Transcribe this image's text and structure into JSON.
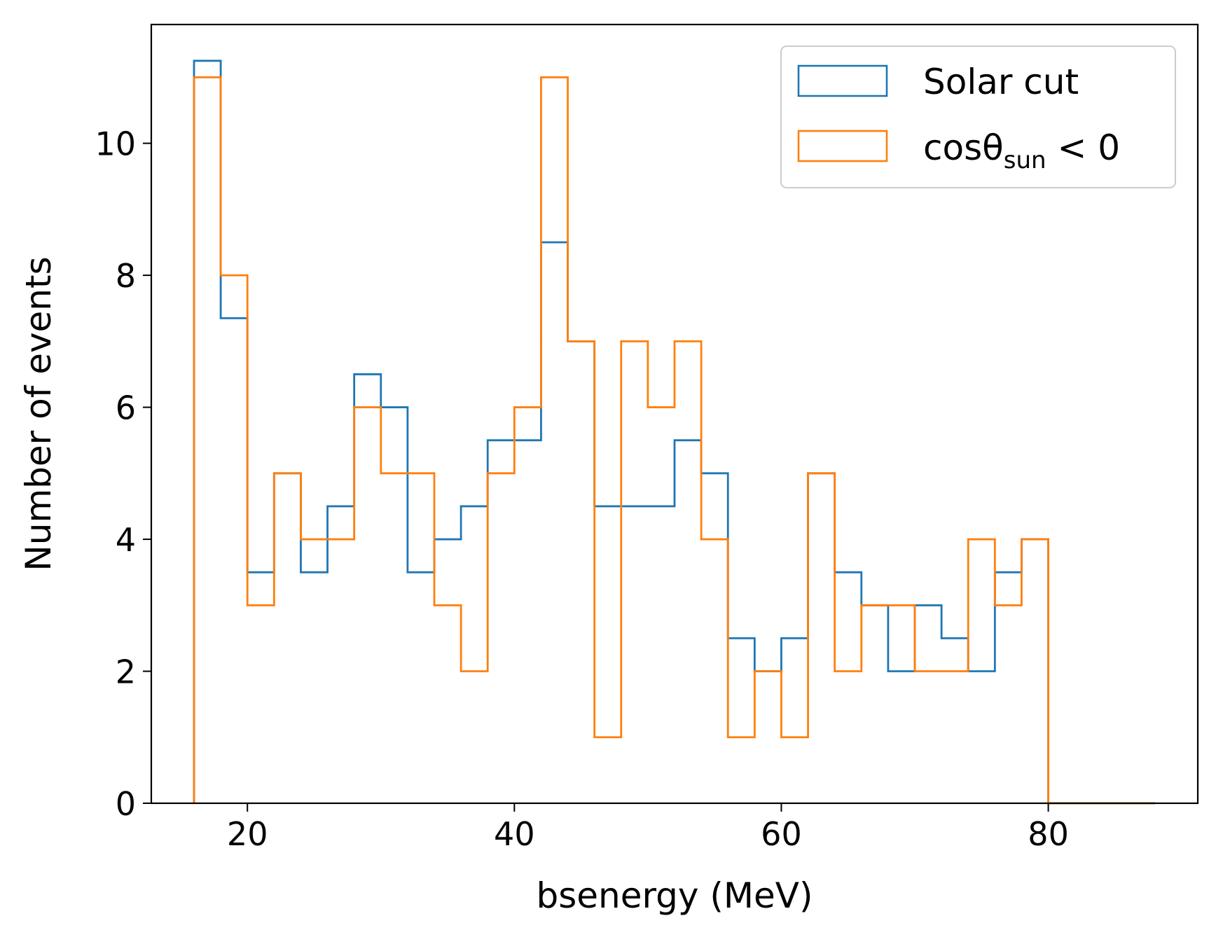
{
  "chart_data": {
    "type": "step-histogram",
    "xlabel": "bsenergy (MeV)",
    "ylabel": "Number of events",
    "xlim": [
      12.8,
      91.2
    ],
    "ylim": [
      0,
      11.8
    ],
    "xticks": [
      20,
      40,
      60,
      80
    ],
    "yticks": [
      0,
      2,
      4,
      6,
      8,
      10
    ],
    "legend_position": "upper-right",
    "grid": false,
    "bin_edges": [
      16,
      18,
      20,
      22,
      24,
      26,
      28,
      30,
      32,
      34,
      36,
      38,
      40,
      42,
      44,
      46,
      48,
      50,
      52,
      54,
      56,
      58,
      60,
      62,
      64,
      66,
      68,
      70,
      72,
      74,
      76,
      78,
      80,
      82,
      84,
      86,
      88
    ],
    "series": [
      {
        "name": "Solar cut",
        "color": "#1f77b4",
        "values": [
          11.25,
          7.35,
          3.5,
          5,
          3.5,
          4.5,
          6.5,
          6,
          3.5,
          4,
          4.5,
          5.5,
          5.5,
          8.5,
          7,
          4.5,
          4.5,
          4.5,
          5.5,
          5,
          2.5,
          2,
          2.5,
          5,
          3.5,
          3,
          2,
          3,
          2.5,
          2,
          3.5,
          4,
          0,
          0,
          0,
          0
        ]
      },
      {
        "name_parts": [
          "cosθ",
          "sun",
          " < 0"
        ],
        "color": "#ff7f0e",
        "values": [
          11,
          8,
          3,
          5,
          4,
          4,
          6,
          5,
          5,
          3,
          2,
          5,
          6,
          11,
          7,
          1,
          7,
          6,
          7,
          4,
          1,
          2,
          1,
          5,
          2,
          3,
          3,
          2,
          2,
          4,
          3,
          4,
          0,
          0,
          0,
          0
        ]
      }
    ]
  }
}
